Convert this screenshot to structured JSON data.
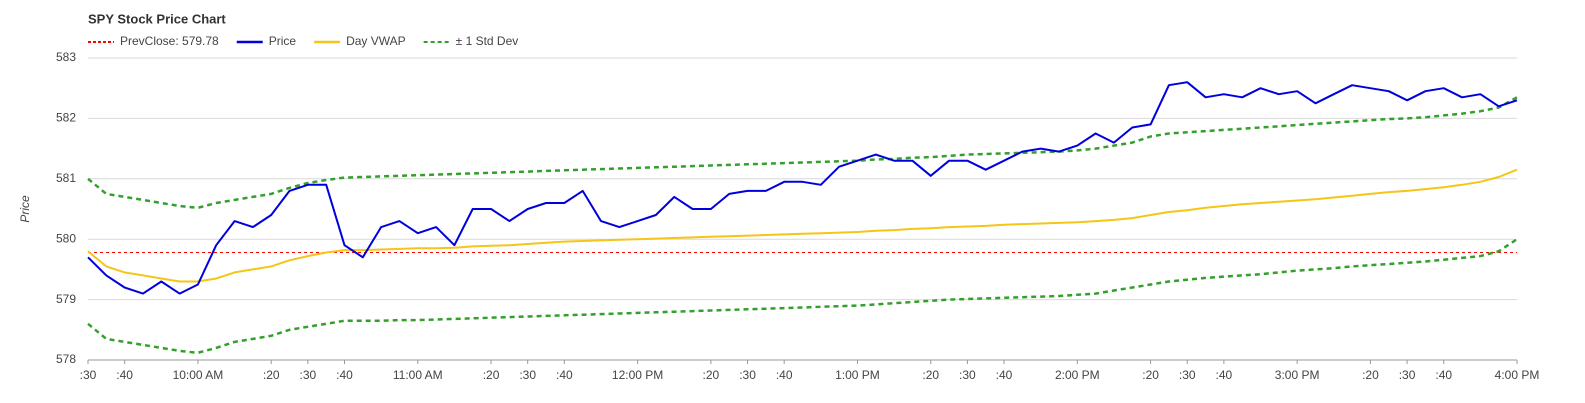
{
  "chart_data": {
    "type": "line",
    "title": "SPY Stock Price Chart",
    "y_label": "Price",
    "reference_line": {
      "label": "PrevClose: 579.78",
      "value": 579.78,
      "color": "#ff0000"
    },
    "x": [
      570,
      575,
      580,
      585,
      590,
      595,
      600,
      605,
      610,
      615,
      620,
      625,
      630,
      635,
      640,
      645,
      650,
      655,
      660,
      665,
      670,
      675,
      680,
      685,
      690,
      695,
      700,
      705,
      710,
      715,
      720,
      725,
      730,
      735,
      740,
      745,
      750,
      755,
      760,
      765,
      770,
      775,
      780,
      785,
      790,
      795,
      800,
      805,
      810,
      815,
      820,
      825,
      830,
      835,
      840,
      845,
      850,
      855,
      860,
      865,
      870,
      875,
      880,
      885,
      890,
      895,
      900,
      905,
      910,
      915,
      920,
      925,
      930,
      935,
      940,
      945,
      950,
      955,
      960
    ],
    "xlim": [
      570,
      960
    ],
    "xticks": [
      {
        "value": 570,
        "label": ":30"
      },
      {
        "value": 580,
        "label": ":40"
      },
      {
        "value": 600,
        "label": "10:00 AM"
      },
      {
        "value": 620,
        "label": ":20"
      },
      {
        "value": 630,
        "label": ":30"
      },
      {
        "value": 640,
        "label": ":40"
      },
      {
        "value": 660,
        "label": "11:00 AM"
      },
      {
        "value": 680,
        "label": ":20"
      },
      {
        "value": 690,
        "label": ":30"
      },
      {
        "value": 700,
        "label": ":40"
      },
      {
        "value": 720,
        "label": "12:00 PM"
      },
      {
        "value": 740,
        "label": ":20"
      },
      {
        "value": 750,
        "label": ":30"
      },
      {
        "value": 760,
        "label": ":40"
      },
      {
        "value": 780,
        "label": "1:00 PM"
      },
      {
        "value": 800,
        "label": ":20"
      },
      {
        "value": 810,
        "label": ":30"
      },
      {
        "value": 820,
        "label": ":40"
      },
      {
        "value": 840,
        "label": "2:00 PM"
      },
      {
        "value": 860,
        "label": ":20"
      },
      {
        "value": 870,
        "label": ":30"
      },
      {
        "value": 880,
        "label": ":40"
      },
      {
        "value": 900,
        "label": "3:00 PM"
      },
      {
        "value": 920,
        "label": ":20"
      },
      {
        "value": 930,
        "label": ":30"
      },
      {
        "value": 940,
        "label": ":40"
      },
      {
        "value": 960,
        "label": "4:00 PM"
      }
    ],
    "ylim": [
      578,
      583
    ],
    "yticks": [
      578,
      579,
      580,
      581,
      582,
      583
    ],
    "grid": true,
    "series": [
      {
        "name": "Price",
        "color": "#0000dd",
        "dashed": false,
        "values": [
          579.7,
          579.4,
          579.2,
          579.1,
          579.3,
          579.1,
          579.25,
          579.9,
          580.3,
          580.2,
          580.4,
          580.8,
          580.9,
          580.9,
          579.9,
          579.7,
          580.2,
          580.3,
          580.1,
          580.2,
          579.9,
          580.5,
          580.5,
          580.3,
          580.5,
          580.6,
          580.6,
          580.8,
          580.3,
          580.2,
          580.3,
          580.4,
          580.7,
          580.5,
          580.5,
          580.75,
          580.8,
          580.8,
          580.95,
          580.95,
          580.9,
          581.2,
          581.3,
          581.4,
          581.3,
          581.3,
          581.05,
          581.3,
          581.3,
          581.15,
          581.3,
          581.45,
          581.5,
          581.45,
          581.55,
          581.75,
          581.6,
          581.85,
          581.9,
          582.55,
          582.6,
          582.35,
          582.4,
          582.35,
          582.5,
          582.4,
          582.45,
          582.25,
          582.4,
          582.55,
          582.5,
          582.45,
          582.3,
          582.45,
          582.5,
          582.35,
          582.4,
          582.2,
          582.3
        ]
      },
      {
        "name": "Day VWAP",
        "color": "#f5c518",
        "dashed": false,
        "values": [
          579.8,
          579.55,
          579.45,
          579.4,
          579.35,
          579.3,
          579.3,
          579.35,
          579.45,
          579.5,
          579.55,
          579.65,
          579.72,
          579.78,
          579.82,
          579.82,
          579.83,
          579.84,
          579.85,
          579.85,
          579.86,
          579.88,
          579.89,
          579.9,
          579.92,
          579.94,
          579.96,
          579.97,
          579.98,
          579.99,
          580.0,
          580.01,
          580.02,
          580.03,
          580.04,
          580.05,
          580.06,
          580.07,
          580.08,
          580.09,
          580.1,
          580.11,
          580.12,
          580.14,
          580.15,
          580.17,
          580.18,
          580.2,
          580.21,
          580.22,
          580.24,
          580.25,
          580.26,
          580.27,
          580.28,
          580.3,
          580.32,
          580.35,
          580.4,
          580.45,
          580.48,
          580.52,
          580.55,
          580.58,
          580.6,
          580.62,
          580.64,
          580.66,
          580.69,
          580.72,
          580.75,
          580.78,
          580.8,
          580.83,
          580.86,
          580.9,
          580.95,
          581.03,
          581.15
        ]
      },
      {
        "name": "± 1 Std Dev",
        "color": "#33a02c",
        "dashed": true,
        "upper": [
          581.0,
          580.75,
          580.7,
          580.65,
          580.6,
          580.55,
          580.52,
          580.6,
          580.65,
          580.7,
          580.75,
          580.85,
          580.93,
          580.98,
          581.02,
          581.03,
          581.04,
          581.05,
          581.06,
          581.07,
          581.08,
          581.09,
          581.1,
          581.11,
          581.12,
          581.13,
          581.14,
          581.15,
          581.16,
          581.17,
          581.18,
          581.19,
          581.2,
          581.21,
          581.22,
          581.23,
          581.24,
          581.25,
          581.26,
          581.27,
          581.28,
          581.29,
          581.3,
          581.32,
          581.33,
          581.35,
          581.36,
          581.38,
          581.4,
          581.41,
          581.42,
          581.43,
          581.44,
          581.45,
          581.47,
          581.5,
          581.55,
          581.6,
          581.7,
          581.75,
          581.77,
          581.79,
          581.81,
          581.83,
          581.85,
          581.87,
          581.89,
          581.91,
          581.93,
          581.95,
          581.97,
          581.99,
          582.0,
          582.02,
          582.05,
          582.08,
          582.12,
          582.18,
          582.35
        ],
        "lower": [
          578.6,
          578.35,
          578.3,
          578.25,
          578.2,
          578.15,
          578.12,
          578.2,
          578.3,
          578.35,
          578.4,
          578.5,
          578.55,
          578.6,
          578.65,
          578.65,
          578.65,
          578.66,
          578.66,
          578.67,
          578.68,
          578.69,
          578.7,
          578.71,
          578.72,
          578.73,
          578.74,
          578.75,
          578.76,
          578.77,
          578.78,
          578.79,
          578.8,
          578.81,
          578.82,
          578.83,
          578.84,
          578.85,
          578.86,
          578.87,
          578.88,
          578.89,
          578.9,
          578.92,
          578.94,
          578.96,
          578.98,
          579.0,
          579.01,
          579.02,
          579.03,
          579.04,
          579.05,
          579.06,
          579.08,
          579.1,
          579.15,
          579.2,
          579.25,
          579.3,
          579.33,
          579.36,
          579.38,
          579.4,
          579.42,
          579.45,
          579.48,
          579.5,
          579.52,
          579.55,
          579.57,
          579.59,
          579.61,
          579.63,
          579.66,
          579.69,
          579.72,
          579.8,
          580.0
        ]
      }
    ]
  }
}
